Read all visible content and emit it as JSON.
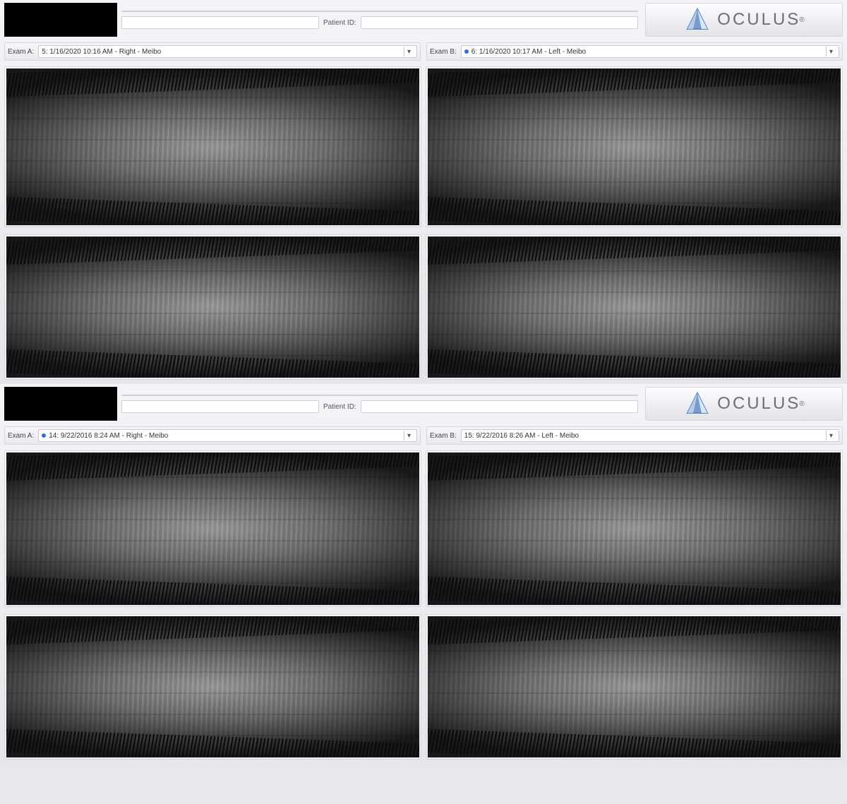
{
  "brand": {
    "name": "OCULUS",
    "reg": "®",
    "logo_color": "#5a86c9"
  },
  "segments": [
    {
      "header": {
        "patient_id_label": "Patient ID:",
        "patient_id_value": "",
        "name_value": ""
      },
      "exam_a": {
        "label": "Exam A:",
        "dot_color": null,
        "selected": "5: 1/16/2020 10:16 AM - Right - Meibo"
      },
      "exam_b": {
        "label": "Exam B:",
        "dot_color": "#2e6fd6",
        "selected": "6: 1/16/2020 10:17 AM - Left - Meibo"
      },
      "rows": [
        {
          "height_class": "scan-tall",
          "left_alt": "Right eye upper lid meibography",
          "right_alt": "Left eye upper lid meibography"
        },
        {
          "height_class": "scan-short",
          "left_alt": "Right eye lower lid meibography",
          "right_alt": "Left eye lower lid meibography"
        }
      ]
    },
    {
      "header": {
        "patient_id_label": "Patient ID:",
        "patient_id_value": "",
        "name_value": ""
      },
      "exam_a": {
        "label": "Exam A:",
        "dot_color": "#2e6fd6",
        "selected": "14: 9/22/2016 8:24 AM - Right - Meibo"
      },
      "exam_b": {
        "label": "Exam B:",
        "dot_color": null,
        "selected": "15: 9/22/2016 8:26 AM - Left - Meibo"
      },
      "rows": [
        {
          "height_class": "scan-mid",
          "left_alt": "Right eye upper lid meibography",
          "right_alt": "Left eye upper lid meibography"
        },
        {
          "height_class": "scan-partial",
          "left_alt": "Right eye lower lid meibography",
          "right_alt": "Left eye lower lid meibography"
        }
      ]
    }
  ],
  "colors": {
    "bg_grad_top": "#f4f4f6",
    "bg_grad_bot": "#e6e6ea",
    "panel_border": "#d5d5da",
    "input_border": "#cfcfd4"
  }
}
